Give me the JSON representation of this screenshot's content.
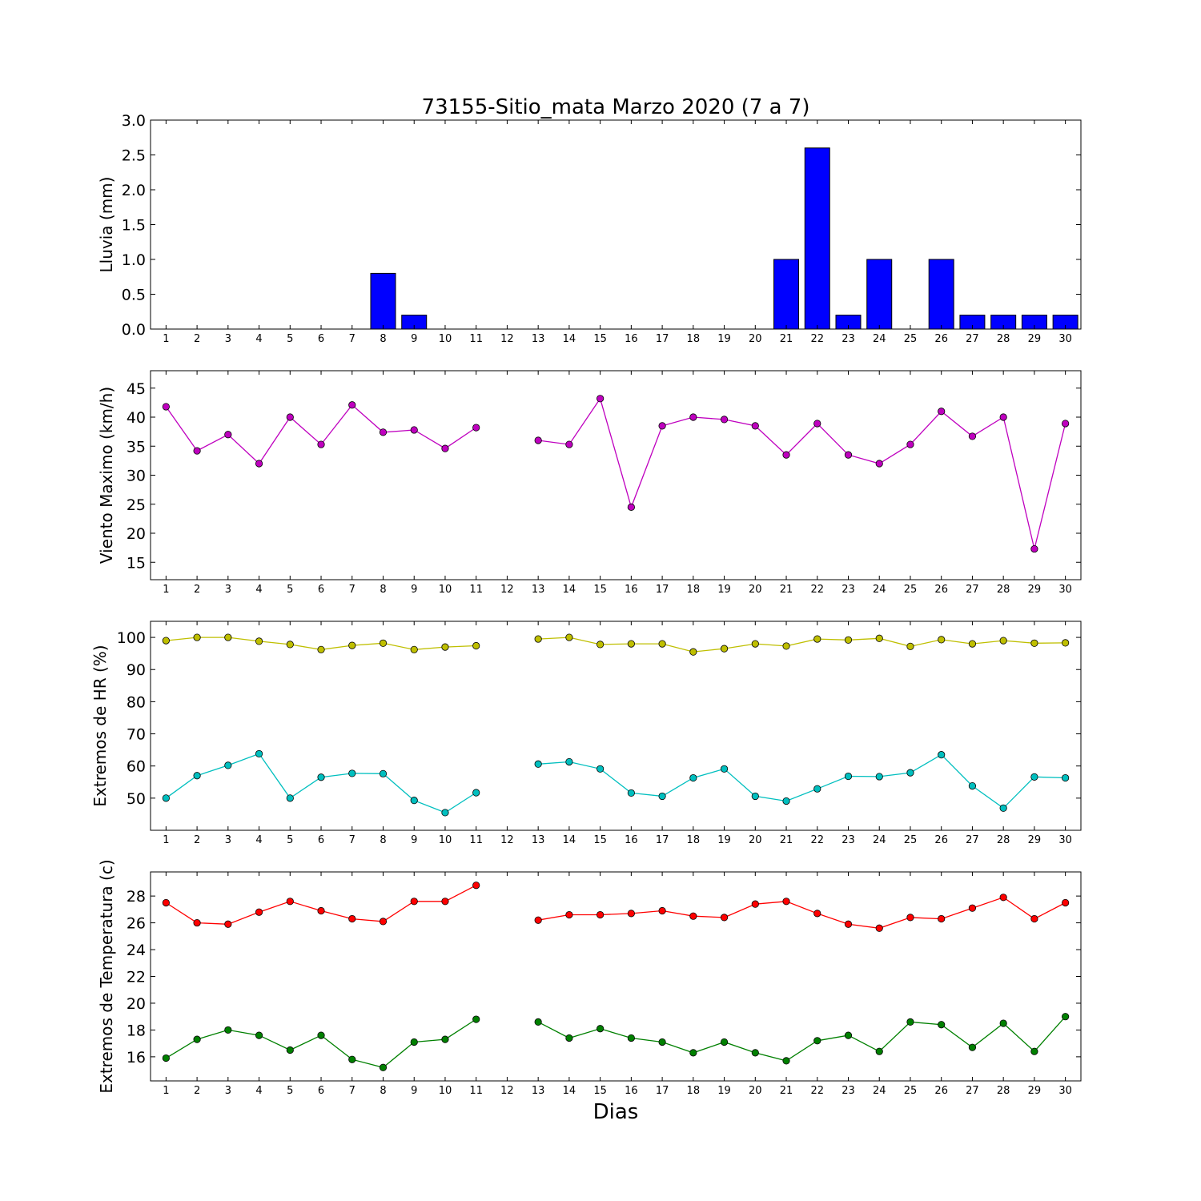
{
  "chart_data": [
    {
      "type": "bar",
      "title": "73155-Sitio_mata Marzo 2020  (7 a 7)",
      "ylabel": "Lluvia (mm)",
      "xlabel": "",
      "x": [
        1,
        2,
        3,
        4,
        5,
        6,
        7,
        8,
        9,
        10,
        11,
        12,
        13,
        14,
        15,
        16,
        17,
        18,
        19,
        20,
        21,
        22,
        23,
        24,
        25,
        26,
        27,
        28,
        29,
        30
      ],
      "xticks": [
        "1",
        "2",
        "3",
        "4",
        "5",
        "6",
        "7",
        "8",
        "9",
        "10",
        "11",
        "12",
        "13",
        "14",
        "15",
        "16",
        "17",
        "18",
        "19",
        "20",
        "21",
        "22",
        "23",
        "24",
        "25",
        "26",
        "27",
        "28",
        "29",
        "30"
      ],
      "xlim": [
        0.5,
        30.5
      ],
      "ylim": [
        0,
        3.0
      ],
      "yticks": [
        0.0,
        0.5,
        1.0,
        1.5,
        2.0,
        2.5,
        3.0
      ],
      "ytick_labels": [
        "0.0",
        "0.5",
        "1.0",
        "1.5",
        "2.0",
        "2.5",
        "3.0"
      ],
      "series": [
        {
          "color": "#0000ff",
          "values": [
            0,
            0,
            0,
            0,
            0,
            0,
            0,
            0.8,
            0.2,
            0,
            0,
            0,
            0,
            0,
            0,
            0,
            0,
            0,
            0,
            0,
            1.0,
            2.6,
            0.2,
            1.0,
            0,
            1.0,
            0.2,
            0.2,
            0.2,
            0.2
          ]
        }
      ]
    },
    {
      "type": "line",
      "title": "",
      "ylabel": "Viento Maximo (km/h)",
      "xlabel": "",
      "x": [
        1,
        2,
        3,
        4,
        5,
        6,
        7,
        8,
        9,
        10,
        11,
        12,
        13,
        14,
        15,
        16,
        17,
        18,
        19,
        20,
        21,
        22,
        23,
        24,
        25,
        26,
        27,
        28,
        29,
        30
      ],
      "xticks": [
        "1",
        "2",
        "3",
        "4",
        "5",
        "6",
        "7",
        "8",
        "9",
        "10",
        "11",
        "12",
        "13",
        "14",
        "15",
        "16",
        "17",
        "18",
        "19",
        "20",
        "21",
        "22",
        "23",
        "24",
        "25",
        "26",
        "27",
        "28",
        "29",
        "30"
      ],
      "xlim": [
        0.5,
        30.5
      ],
      "ylim": [
        12,
        48
      ],
      "yticks": [
        15,
        20,
        25,
        30,
        35,
        40,
        45
      ],
      "ytick_labels": [
        "15",
        "20",
        "25",
        "30",
        "35",
        "40",
        "45"
      ],
      "series": [
        {
          "color": "#bf00bf",
          "values": [
            41.8,
            34.2,
            37.0,
            32.0,
            40.0,
            35.3,
            42.1,
            37.4,
            37.8,
            34.6,
            38.2,
            null,
            36.0,
            35.3,
            43.2,
            24.5,
            38.5,
            40.0,
            39.6,
            38.5,
            33.5,
            38.9,
            33.5,
            32.0,
            35.3,
            41.0,
            36.7,
            40.0,
            17.3,
            38.9
          ]
        }
      ]
    },
    {
      "type": "line",
      "title": "",
      "ylabel": "Extremos de HR (%)",
      "xlabel": "",
      "x": [
        1,
        2,
        3,
        4,
        5,
        6,
        7,
        8,
        9,
        10,
        11,
        12,
        13,
        14,
        15,
        16,
        17,
        18,
        19,
        20,
        21,
        22,
        23,
        24,
        25,
        26,
        27,
        28,
        29,
        30
      ],
      "xticks": [
        "1",
        "2",
        "3",
        "4",
        "5",
        "6",
        "7",
        "8",
        "9",
        "10",
        "11",
        "12",
        "13",
        "14",
        "15",
        "16",
        "17",
        "18",
        "19",
        "20",
        "21",
        "22",
        "23",
        "24",
        "25",
        "26",
        "27",
        "28",
        "29",
        "30"
      ],
      "xlim": [
        0.5,
        30.5
      ],
      "ylim": [
        40,
        105
      ],
      "yticks": [
        50,
        60,
        70,
        80,
        90,
        100
      ],
      "ytick_labels": [
        "50",
        "60",
        "70",
        "80",
        "90",
        "100"
      ],
      "series": [
        {
          "color": "#bfbf00",
          "values": [
            99.0,
            100.0,
            100.0,
            98.8,
            97.8,
            96.2,
            97.5,
            98.2,
            96.2,
            97.0,
            97.4,
            null,
            99.5,
            100.0,
            97.8,
            98.0,
            98.0,
            95.5,
            96.5,
            98.0,
            97.3,
            99.5,
            99.2,
            99.7,
            97.2,
            99.3,
            98.0,
            99.0,
            98.2,
            98.3
          ]
        },
        {
          "color": "#00bfbf",
          "values": [
            50.0,
            57.0,
            60.2,
            63.8,
            50.0,
            56.5,
            57.7,
            57.6,
            49.3,
            45.5,
            51.7,
            null,
            60.6,
            61.3,
            59.1,
            51.6,
            50.6,
            56.3,
            59.1,
            50.6,
            49.1,
            52.9,
            56.8,
            56.7,
            57.9,
            63.5,
            53.8,
            46.9,
            56.6,
            56.3
          ]
        }
      ]
    },
    {
      "type": "line",
      "title": "",
      "ylabel": "Extremos de Temperatura (c)",
      "xlabel": "Dias",
      "x": [
        1,
        2,
        3,
        4,
        5,
        6,
        7,
        8,
        9,
        10,
        11,
        12,
        13,
        14,
        15,
        16,
        17,
        18,
        19,
        20,
        21,
        22,
        23,
        24,
        25,
        26,
        27,
        28,
        29,
        30
      ],
      "xticks": [
        "1",
        "2",
        "3",
        "4",
        "5",
        "6",
        "7",
        "8",
        "9",
        "10",
        "11",
        "12",
        "13",
        "14",
        "15",
        "16",
        "17",
        "18",
        "19",
        "20",
        "21",
        "22",
        "23",
        "24",
        "25",
        "26",
        "27",
        "28",
        "29",
        "30"
      ],
      "xlim": [
        0.5,
        30.5
      ],
      "ylim": [
        14.2,
        29.8
      ],
      "yticks": [
        16,
        18,
        20,
        22,
        24,
        26,
        28
      ],
      "ytick_labels": [
        "16",
        "18",
        "20",
        "22",
        "24",
        "26",
        "28"
      ],
      "series": [
        {
          "color": "#ff0000",
          "values": [
            27.5,
            26.0,
            25.9,
            26.8,
            27.6,
            26.9,
            26.3,
            26.1,
            27.6,
            27.6,
            28.8,
            null,
            26.2,
            26.6,
            26.6,
            26.7,
            26.9,
            26.5,
            26.4,
            27.4,
            27.6,
            26.7,
            25.9,
            25.6,
            26.4,
            26.3,
            27.1,
            27.9,
            26.3,
            27.5
          ]
        },
        {
          "color": "#008000",
          "values": [
            15.9,
            17.3,
            18.0,
            17.6,
            16.5,
            17.6,
            15.8,
            15.2,
            17.1,
            17.3,
            18.8,
            null,
            18.6,
            17.4,
            18.1,
            17.4,
            17.1,
            16.3,
            17.1,
            16.3,
            15.7,
            17.2,
            17.6,
            16.4,
            18.6,
            18.4,
            16.7,
            18.5,
            16.4,
            19.0
          ]
        }
      ]
    }
  ]
}
